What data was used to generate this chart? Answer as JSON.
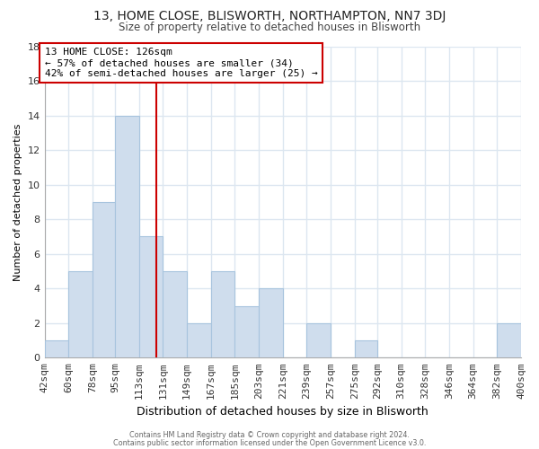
{
  "title1": "13, HOME CLOSE, BLISWORTH, NORTHAMPTON, NN7 3DJ",
  "title2": "Size of property relative to detached houses in Blisworth",
  "xlabel": "Distribution of detached houses by size in Blisworth",
  "ylabel": "Number of detached properties",
  "bins": [
    42,
    60,
    78,
    95,
    113,
    131,
    149,
    167,
    185,
    203,
    221,
    239,
    257,
    275,
    292,
    310,
    328,
    346,
    364,
    382,
    400
  ],
  "bin_labels": [
    "42sqm",
    "60sqm",
    "78sqm",
    "95sqm",
    "113sqm",
    "131sqm",
    "149sqm",
    "167sqm",
    "185sqm",
    "203sqm",
    "221sqm",
    "239sqm",
    "257sqm",
    "275sqm",
    "292sqm",
    "310sqm",
    "328sqm",
    "346sqm",
    "364sqm",
    "382sqm",
    "400sqm"
  ],
  "values": [
    1,
    5,
    9,
    14,
    7,
    5,
    2,
    5,
    3,
    4,
    0,
    2,
    0,
    1,
    0,
    0,
    0,
    0,
    0,
    2
  ],
  "bar_color": "#cfdded",
  "bar_edge_color": "#a8c4de",
  "vline_x": 126,
  "vline_color": "#cc0000",
  "annotation_line1": "13 HOME CLOSE: 126sqm",
  "annotation_line2": "← 57% of detached houses are smaller (34)",
  "annotation_line3": "42% of semi-detached houses are larger (25) →",
  "annotation_box_color": "#ffffff",
  "annotation_box_edge": "#cc0000",
  "ylim": [
    0,
    18
  ],
  "yticks": [
    0,
    2,
    4,
    6,
    8,
    10,
    12,
    14,
    16,
    18
  ],
  "background_color": "#ffffff",
  "plot_bg_color": "#ffffff",
  "grid_color": "#dce6f0",
  "footer1": "Contains HM Land Registry data © Crown copyright and database right 2024.",
  "footer2": "Contains public sector information licensed under the Open Government Licence v3.0."
}
